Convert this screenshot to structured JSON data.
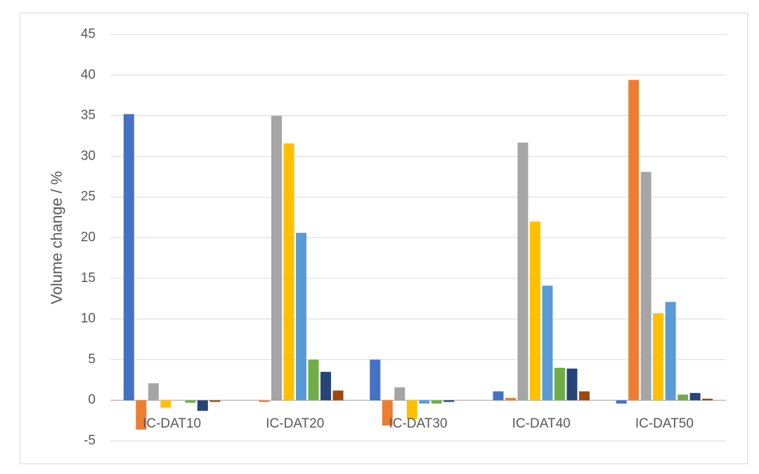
{
  "chart_data": {
    "type": "bar",
    "y_label": "Volume change / %",
    "categories": [
      "IC-DAT10",
      "IC-DAT20",
      "IC-DAT30",
      "IC-DAT40",
      "IC-DAT50"
    ],
    "series": [
      {
        "color": "#4472c4",
        "values": [
          35.2,
          0,
          5.0,
          1.1,
          -0.4
        ]
      },
      {
        "color": "#ed7d31",
        "values": [
          -3.6,
          -0.2,
          -3.1,
          0.3,
          39.4
        ]
      },
      {
        "color": "#a5a5a5",
        "values": [
          2.1,
          35.0,
          1.6,
          31.7,
          28.1
        ]
      },
      {
        "color": "#ffc000",
        "values": [
          -0.9,
          31.6,
          -2.3,
          22.0,
          10.7
        ]
      },
      {
        "color": "#5b9bd5",
        "values": [
          0,
          20.6,
          -0.4,
          14.1,
          12.1
        ]
      },
      {
        "color": "#70ad47",
        "values": [
          -0.3,
          5.0,
          -0.4,
          4.0,
          0.7
        ]
      },
      {
        "color": "#264478",
        "values": [
          -1.3,
          3.5,
          -0.2,
          3.9,
          0.9
        ]
      },
      {
        "color": "#9e480e",
        "values": [
          -0.2,
          1.2,
          0,
          1.1,
          0.2
        ]
      }
    ],
    "ylim": [
      -5,
      45
    ],
    "yticks": [
      -5,
      0,
      5,
      10,
      15,
      20,
      25,
      30,
      35,
      40,
      45
    ],
    "grid": true
  }
}
